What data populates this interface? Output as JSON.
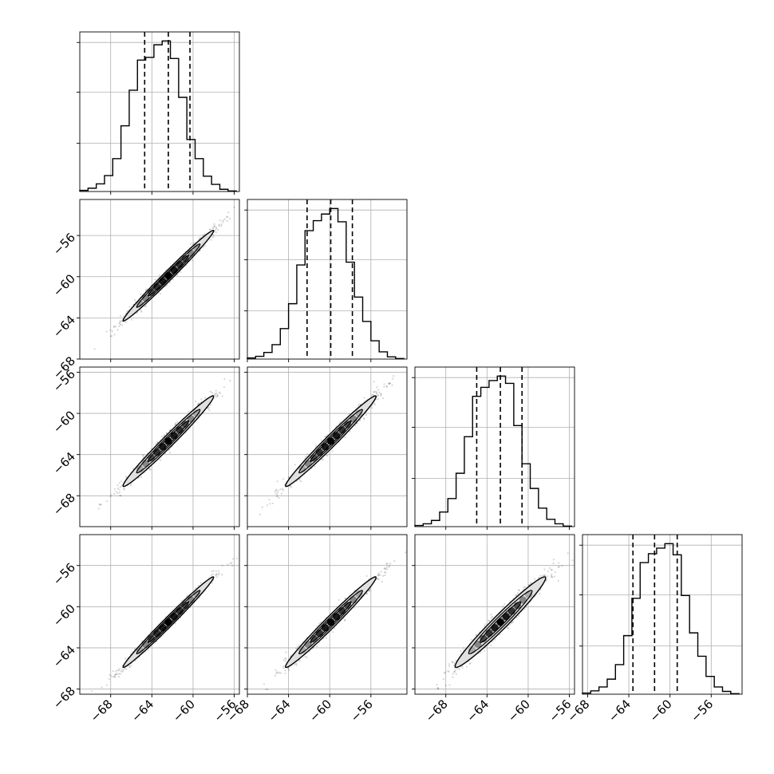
{
  "chart_data": {
    "type": "corner",
    "dimensions": 4,
    "axis_ticks": [
      [
        -68,
        -64,
        -60,
        -56
      ],
      [
        -68,
        -64,
        -60,
        -56
      ],
      [
        -68,
        -64,
        -60,
        -56
      ],
      [
        -68,
        -64,
        -60,
        -56
      ]
    ],
    "axis_tick_labels": [
      "−68",
      "−64",
      "−60",
      "−56"
    ],
    "axis_ranges": [
      [
        -71,
        -55.5
      ],
      [
        -68,
        -52.5
      ],
      [
        -71,
        -55.5
      ],
      [
        -68.5,
        -53
      ]
    ],
    "grid": true,
    "histograms": [
      {
        "bin_edges": [
          -71,
          -70.2,
          -69.4,
          -68.6,
          -67.8,
          -67,
          -66.2,
          -65.4,
          -64.6,
          -63.8,
          -63,
          -62.2,
          -61.4,
          -60.6,
          -59.8,
          -59,
          -58.2,
          -57.4,
          -56.6,
          -55.8
        ],
        "counts": [
          2,
          6,
          14,
          29,
          60,
          120,
          185,
          240,
          245,
          268,
          275,
          243,
          172,
          95,
          60,
          28,
          13,
          4,
          1
        ],
        "quantiles": [
          -64.7,
          -62.4,
          -60.3
        ]
      },
      {
        "bin_edges": [
          -68,
          -67.2,
          -66.4,
          -65.6,
          -64.8,
          -64,
          -63.2,
          -62.4,
          -61.6,
          -60.8,
          -60,
          -59.2,
          -58.4,
          -57.6,
          -56.8,
          -56,
          -55.2,
          -54.4,
          -53.6,
          -52.8
        ],
        "counts": [
          2,
          5,
          12,
          26,
          55,
          100,
          170,
          232,
          250,
          262,
          272,
          248,
          175,
          112,
          68,
          33,
          13,
          4,
          1
        ],
        "quantiles": [
          -62.2,
          -59.9,
          -57.8
        ]
      },
      {
        "bin_edges": [
          -71,
          -70.2,
          -69.4,
          -68.6,
          -67.8,
          -67,
          -66.2,
          -65.4,
          -64.6,
          -63.8,
          -63,
          -62.2,
          -61.4,
          -60.6,
          -59.8,
          -59,
          -58.2,
          -57.4,
          -56.6,
          -55.8
        ],
        "counts": [
          2,
          5,
          11,
          26,
          50,
          95,
          160,
          232,
          248,
          260,
          268,
          255,
          180,
          112,
          68,
          33,
          13,
          5,
          1
        ],
        "quantiles": [
          -65.0,
          -62.7,
          -60.6
        ]
      },
      {
        "bin_edges": [
          -68.5,
          -67.7,
          -66.9,
          -66.1,
          -65.3,
          -64.5,
          -63.7,
          -62.9,
          -62.1,
          -61.3,
          -60.5,
          -59.7,
          -58.9,
          -58.1,
          -57.3,
          -56.5,
          -55.7,
          -54.9,
          -54.1,
          -53.3
        ],
        "counts": [
          2,
          6,
          13,
          27,
          53,
          105,
          172,
          236,
          252,
          262,
          270,
          250,
          177,
          110,
          68,
          32,
          13,
          5,
          1
        ],
        "quantiles": [
          -63.6,
          -61.5,
          -59.3
        ]
      }
    ],
    "pairs": [
      {
        "x_dim": 0,
        "y_dim": 1,
        "center": [
          -62.4,
          -59.9
        ],
        "sigma": [
          2.2,
          2.2
        ],
        "rho": 0.99
      },
      {
        "x_dim": 0,
        "y_dim": 2,
        "center": [
          -62.4,
          -62.7
        ],
        "sigma": [
          2.2,
          2.2
        ],
        "rho": 0.985
      },
      {
        "x_dim": 1,
        "y_dim": 2,
        "center": [
          -59.9,
          -62.7
        ],
        "sigma": [
          2.2,
          2.2
        ],
        "rho": 0.985
      },
      {
        "x_dim": 0,
        "y_dim": 3,
        "center": [
          -62.4,
          -61.5
        ],
        "sigma": [
          2.2,
          2.2
        ],
        "rho": 0.99
      },
      {
        "x_dim": 1,
        "y_dim": 3,
        "center": [
          -59.9,
          -61.5
        ],
        "sigma": [
          2.2,
          2.2
        ],
        "rho": 0.985
      },
      {
        "x_dim": 2,
        "y_dim": 3,
        "center": [
          -62.7,
          -61.5
        ],
        "sigma": [
          2.2,
          2.2
        ],
        "rho": 0.975
      }
    ],
    "colors": {
      "line": "#000000",
      "grid": "#b0b0b0",
      "fill_outer": "#e0e0e0",
      "fill_inner": "#a8a8a8",
      "points": "#000000"
    }
  }
}
